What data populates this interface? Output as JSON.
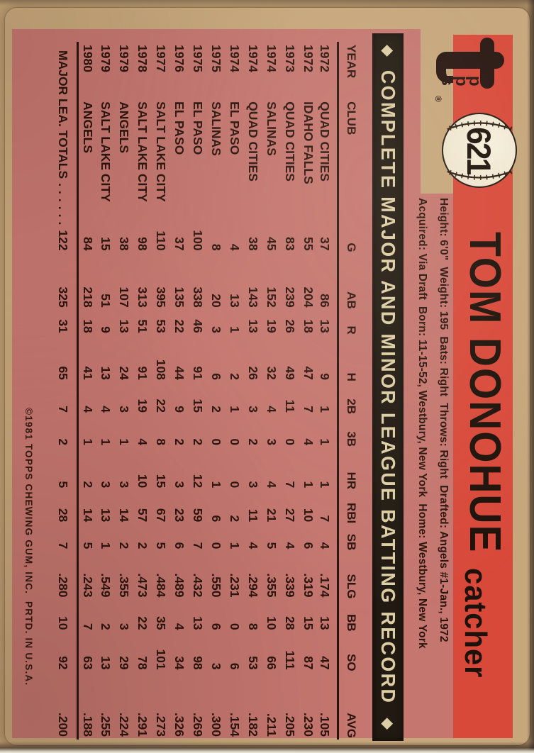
{
  "card": {
    "brand_logo": {
      "t": "t",
      "opps": "o\np\np\ns",
      "reg": "®"
    },
    "number": "621",
    "player_name": "TOM DONOHUE",
    "position": "catcher",
    "bio_line1": "Height: 6'0\"  Weight: 195  Bats: Right  Throws: Right  Drafted: Angels #1-Jan., 1972",
    "bio_line2": "Acquired: Via Draft  Born: 11-15-52, Westbury, New York  Home: Westbury, New York",
    "banner": {
      "left_icon": "◆",
      "title": "COMPLETE MAJOR AND MINOR LEAGUE BATTING RECORD",
      "right_icon": "◆"
    },
    "copyright": "©1981 TOPPS CHEWING GUM, INC.  PRTD. IN U.S.A.",
    "colors": {
      "cardboard": "#c6a67b",
      "body_pink": "#c4766f",
      "stripe_red": "#d8493a",
      "ink": "#261510",
      "banner_bg": "#211a12",
      "banner_text": "#dccda4",
      "baseball": "#efe6d0"
    }
  },
  "stats": {
    "columns": [
      "YEAR",
      "CLUB",
      "G",
      "AB",
      "R",
      "H",
      "2B",
      "3B",
      "HR",
      "RBI",
      "SB",
      "SLG",
      "BB",
      "SO",
      "AVG"
    ],
    "rows": [
      [
        "1972",
        "QUAD CITIES",
        "37",
        "86",
        "13",
        "9",
        "1",
        "1",
        "1",
        "7",
        "4",
        ".174",
        "13",
        "47",
        ".105"
      ],
      [
        "1972",
        "IDAHO FALLS",
        "55",
        "204",
        "18",
        "47",
        "7",
        "4",
        "1",
        "10",
        "6",
        ".319",
        "15",
        "87",
        ".230"
      ],
      [
        "1973",
        "QUAD CITIES",
        "83",
        "239",
        "26",
        "49",
        "11",
        "0",
        "7",
        "27",
        "4",
        ".339",
        "28",
        "111",
        ".205"
      ],
      [
        "1974",
        "SALINAS",
        "45",
        "152",
        "19",
        "32",
        "4",
        "3",
        "4",
        "21",
        "5",
        ".355",
        "10",
        "66",
        ".211"
      ],
      [
        "1974",
        "QUAD CITIES",
        "38",
        "143",
        "13",
        "26",
        "3",
        "2",
        "3",
        "11",
        "4",
        ".294",
        "8",
        "53",
        ".182"
      ],
      [
        "1974",
        "EL PASO",
        "4",
        "13",
        "1",
        "2",
        "1",
        "0",
        "0",
        "2",
        "1",
        ".231",
        "0",
        "6",
        ".154"
      ],
      [
        "1975",
        "SALINAS",
        "8",
        "20",
        "3",
        "6",
        "2",
        "0",
        "1",
        "6",
        "0",
        ".550",
        "6",
        "3",
        ".300"
      ],
      [
        "1975",
        "EL PASO",
        "100",
        "338",
        "46",
        "91",
        "15",
        "2",
        "12",
        "59",
        "7",
        ".432",
        "13",
        "98",
        ".269"
      ],
      [
        "1976",
        "EL PASO",
        "37",
        "135",
        "22",
        "44",
        "9",
        "2",
        "3",
        "23",
        "6",
        ".489",
        "4",
        "34",
        ".326"
      ],
      [
        "1977",
        "SALT LAKE CITY",
        "110",
        "395",
        "53",
        "108",
        "22",
        "8",
        "15",
        "67",
        "5",
        ".484",
        "35",
        "101",
        ".273"
      ],
      [
        "1978",
        "SALT LAKE CITY",
        "98",
        "313",
        "51",
        "91",
        "19",
        "4",
        "10",
        "57",
        "2",
        ".473",
        "22",
        "78",
        ".291"
      ],
      [
        "1979",
        "ANGELS",
        "38",
        "107",
        "13",
        "24",
        "3",
        "1",
        "3",
        "14",
        "2",
        ".355",
        "3",
        "29",
        ".224"
      ],
      [
        "1979",
        "SALT LAKE CITY",
        "15",
        "51",
        "9",
        "13",
        "4",
        "1",
        "3",
        "13",
        "1",
        ".549",
        "2",
        "13",
        ".255"
      ],
      [
        "1980",
        "ANGELS",
        "84",
        "218",
        "18",
        "41",
        "4",
        "1",
        "2",
        "14",
        "5",
        ".243",
        "7",
        "63",
        ".188"
      ]
    ],
    "totals_label": "MAJOR LEA. TOTALS",
    "totals_leader": "......",
    "totals": [
      "122",
      "325",
      "31",
      "65",
      "7",
      "2",
      "5",
      "28",
      "7",
      ".280",
      "10",
      "92",
      ".200"
    ]
  }
}
